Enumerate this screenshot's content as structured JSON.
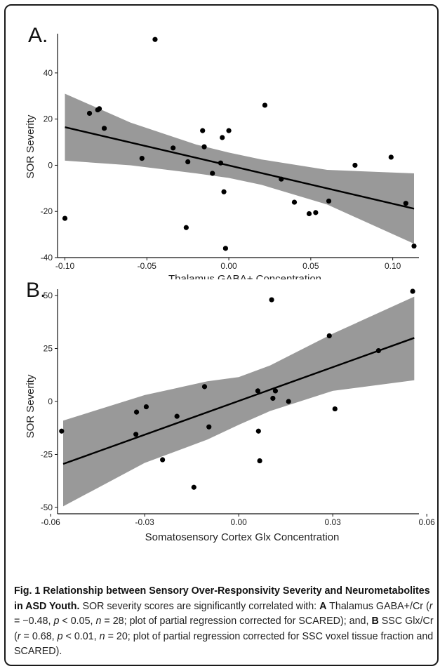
{
  "chart_data": [
    {
      "type": "scatter",
      "panel_label": "A.",
      "title": "",
      "xlabel": "Thalamus GABA+ Concentration",
      "ylabel": "SOR Severity",
      "xlim": [
        -0.1045,
        0.116
      ],
      "ylim": [
        -40,
        57
      ],
      "xticks": [
        -0.1,
        -0.05,
        0.0,
        0.05,
        0.1
      ],
      "xtick_labels": [
        "-0.10",
        "-0.05",
        "0.00",
        "0.05",
        "0.10"
      ],
      "yticks": [
        -40,
        -20,
        0,
        20,
        40
      ],
      "ytick_labels": [
        "-40",
        "-20",
        "0",
        "20",
        "40"
      ],
      "grid": false,
      "fit_line": {
        "x": [
          -0.1,
          0.113
        ],
        "y": [
          16.5,
          -18.8
        ]
      },
      "confidence_band": {
        "x": [
          -0.1,
          -0.06,
          -0.02,
          0.0,
          0.02,
          0.06,
          0.113
        ],
        "upper": [
          31,
          18.5,
          9,
          5.5,
          2.5,
          -2,
          -3.5
        ],
        "lower": [
          2,
          0,
          -3.5,
          -5.5,
          -8.5,
          -17,
          -34
        ]
      },
      "points": {
        "x": [
          -0.1,
          -0.085,
          -0.08,
          -0.079,
          -0.076,
          -0.053,
          -0.045,
          -0.034,
          -0.026,
          -0.025,
          -0.016,
          -0.015,
          -0.01,
          -0.005,
          -0.004,
          -0.003,
          -0.002,
          0.0,
          0.022,
          0.032,
          0.04,
          0.049,
          0.053,
          0.061,
          0.077,
          0.099,
          0.108,
          0.113
        ],
        "y": [
          -23,
          22.5,
          24,
          24.5,
          16,
          3,
          54.5,
          7.5,
          -27,
          1.5,
          15,
          8,
          -3.5,
          1,
          12,
          -11.5,
          -36,
          15,
          26,
          -6,
          -16,
          -21,
          -20.5,
          -15.5,
          0,
          3.5,
          -16.5,
          -35
        ]
      }
    },
    {
      "type": "scatter",
      "panel_label": "B.",
      "title": "",
      "xlabel": "Somatosensory Cortex Glx Concentration",
      "ylabel": "SOR Severity",
      "xlim": [
        -0.0578,
        0.0575
      ],
      "ylim": [
        -53,
        53
      ],
      "xticks": [
        -0.06,
        -0.03,
        0.0,
        0.03,
        0.06
      ],
      "xtick_labels": [
        "-0.06",
        "-0.03",
        "0.00",
        "0.03",
        "0.06"
      ],
      "yticks": [
        -50,
        -25,
        0,
        25,
        50
      ],
      "ytick_labels": [
        "-50",
        "-25",
        "0",
        "25",
        "50"
      ],
      "grid": false,
      "fit_line": {
        "x": [
          -0.056,
          0.056
        ],
        "y": [
          -29.5,
          30
        ]
      },
      "confidence_band": {
        "x": [
          -0.056,
          -0.03,
          -0.01,
          0.0,
          0.01,
          0.03,
          0.056
        ],
        "upper": [
          -9,
          3,
          9.5,
          11.5,
          17,
          32,
          49.5
        ],
        "lower": [
          -49.5,
          -29,
          -18,
          -11,
          -4.5,
          5,
          10
        ]
      },
      "points": {
        "x": [
          -0.0565,
          -0.0328,
          -0.0326,
          -0.0295,
          -0.0243,
          -0.0197,
          -0.0143,
          -0.0109,
          -0.0095,
          0.0061,
          0.0063,
          0.0067,
          0.0105,
          0.0109,
          0.0117,
          0.0159,
          0.0289,
          0.0307,
          0.0446,
          0.0555
        ],
        "y": [
          -14,
          -15.5,
          -5,
          -2.5,
          -27.5,
          -7,
          -40.5,
          7,
          -12,
          5,
          -14,
          -28,
          48,
          1.5,
          5,
          0,
          31,
          -3.5,
          24,
          52
        ]
      }
    }
  ],
  "caption": {
    "heading": "Fig. 1 Relationship between Sensory Over-Responsivity Severity and Neurometabolites in ASD Youth.",
    "text": "SOR severity scores are significantly correlated with: A Thalamus GABA+/Cr (r = −0.48, p < 0.05, n = 28; plot of partial regression corrected for SCARED); and, B SSC Glx/Cr (r = 0.68, p < 0.01, n = 20; plot of partial regression corrected for SSC voxel tissue fraction and SCARED).",
    "parts": [
      "SOR severity scores are significantly correlated with: ",
      "A",
      " Thalamus GABA+/Cr (",
      "r",
      " = −0.48, ",
      "p",
      " < 0.05, ",
      "n",
      " = 28; plot of partial regression corrected for SCARED); and, ",
      "B",
      " SSC Glx/Cr (",
      "r",
      " = 0.68, ",
      "p",
      " < 0.01, ",
      "n",
      " = 20; plot of partial regression corrected for SSC voxel tissue fraction and SCARED)."
    ]
  },
  "colors": {
    "points": "#000000",
    "fit_line": "#000000",
    "confidence_band": "#999999",
    "frame_border": "#1a1a1a",
    "text": "#222222"
  }
}
